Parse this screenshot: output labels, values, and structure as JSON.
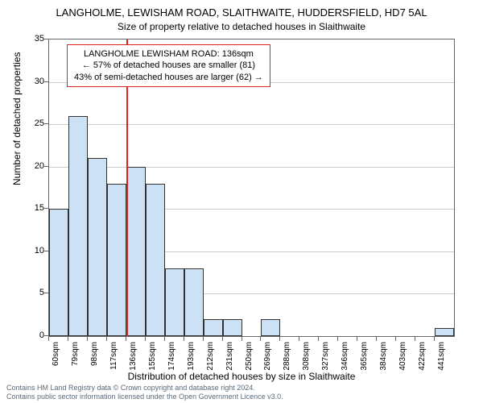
{
  "title_main": "LANGHOLME, LEWISHAM ROAD, SLAITHWAITE, HUDDERSFIELD, HD7 5AL",
  "title_sub": "Size of property relative to detached houses in Slaithwaite",
  "y_axis_label": "Number of detached properties",
  "x_axis_label": "Distribution of detached houses by size in Slaithwaite",
  "footer_line1": "Contains HM Land Registry data © Crown copyright and database right 2024.",
  "footer_line2": "Contains public sector information licensed under the Open Government Licence v3.0.",
  "chart": {
    "type": "histogram",
    "ylim": [
      0,
      35
    ],
    "ytick_step": 5,
    "xlim": [
      60,
      460
    ],
    "xtick_step": 19,
    "xtick_suffix": "sqm",
    "bar_color": "#cde1f5",
    "bar_border": "#333333",
    "grid_color": "#cccccc",
    "plot_border": "#666666",
    "categories": [
      "60sqm",
      "79sqm",
      "98sqm",
      "117sqm",
      "136sqm",
      "155sqm",
      "174sqm",
      "193sqm",
      "212sqm",
      "231sqm",
      "250sqm",
      "269sqm",
      "288sqm",
      "308sqm",
      "327sqm",
      "346sqm",
      "365sqm",
      "384sqm",
      "403sqm",
      "422sqm",
      "441sqm"
    ],
    "values": [
      15,
      26,
      21,
      18,
      20,
      18,
      8,
      8,
      2,
      2,
      0,
      2,
      0,
      0,
      0,
      0,
      0,
      0,
      0,
      0,
      1
    ],
    "marker_position": 136,
    "marker_color": "#dd2222",
    "annotation": {
      "line1": "LANGHOLME LEWISHAM ROAD: 136sqm",
      "line2": "← 57% of detached houses are smaller (81)",
      "line3": "43% of semi-detached houses are larger (62) →"
    }
  }
}
